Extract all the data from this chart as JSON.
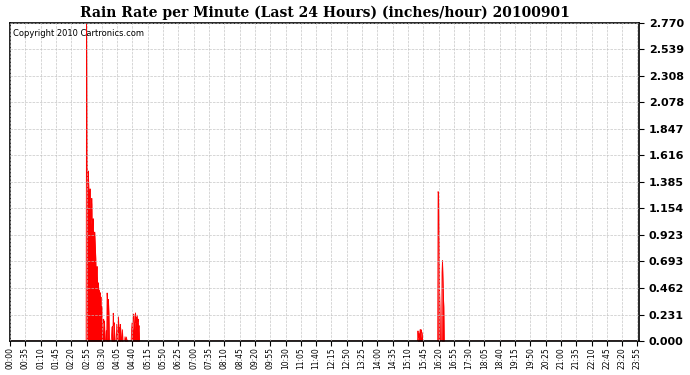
{
  "title": "Rain Rate per Minute (Last 24 Hours) (inches/hour) 20100901",
  "copyright": "Copyright 2010 Cartronics.com",
  "y_max": 2.77,
  "y_min": 0.0,
  "y_ticks": [
    0.0,
    0.231,
    0.462,
    0.693,
    0.923,
    1.154,
    1.385,
    1.616,
    1.847,
    2.078,
    2.308,
    2.539,
    2.77
  ],
  "line_color": "#ff0000",
  "bg_color": "#ffffff",
  "grid_color": "#c0c0c0",
  "border_color": "#000000",
  "x_tick_step_min": 35,
  "x_start_min": 0,
  "n_minutes": 1440
}
